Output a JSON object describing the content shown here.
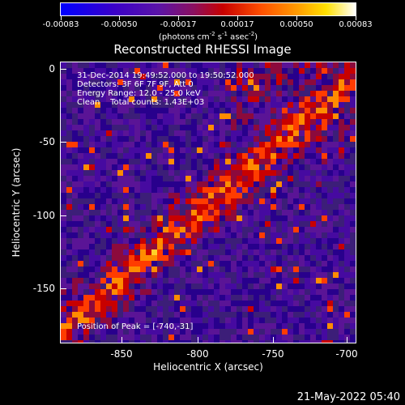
{
  "colorbar": {
    "tick_labels": [
      "-0.00083",
      "-0.00050",
      "-0.00017",
      "0.00017",
      "0.00050",
      "0.00083"
    ],
    "units_text": "(photons cm",
    "units_sup1": "-2",
    "units_mid1": " s",
    "units_sup2": "-1",
    "units_mid2": " asec",
    "units_sup3": "-2",
    "units_end": ")"
  },
  "title": "Reconstructed RHESSI Image",
  "annotations": {
    "line1": "31-Dec-2014 19:49:52.000 to 19:50:52.000",
    "line2": "Detectors: 3F 6F 7F 9F, Att 0",
    "line3": "Energy Range: 12.0 - 25.0 keV",
    "line4": "Clean    Total counts: 1.43E+03",
    "peak": "Position of Peak = [-740,-31]"
  },
  "axes": {
    "xlabel": "Heliocentric X (arcsec)",
    "ylabel": "Heliocentric Y (arcsec)",
    "x_ticks": [
      "-850",
      "-800",
      "-750",
      "-700"
    ],
    "y_ticks": [
      "0",
      "-50",
      "-100",
      "-150"
    ],
    "xlim": [
      -885,
      -695
    ],
    "ylim": [
      -188,
      7
    ]
  },
  "footer": {
    "timestamp": "21-May-2022 05:40"
  },
  "colors": {
    "background": "#000000",
    "foreground": "#ffffff"
  }
}
